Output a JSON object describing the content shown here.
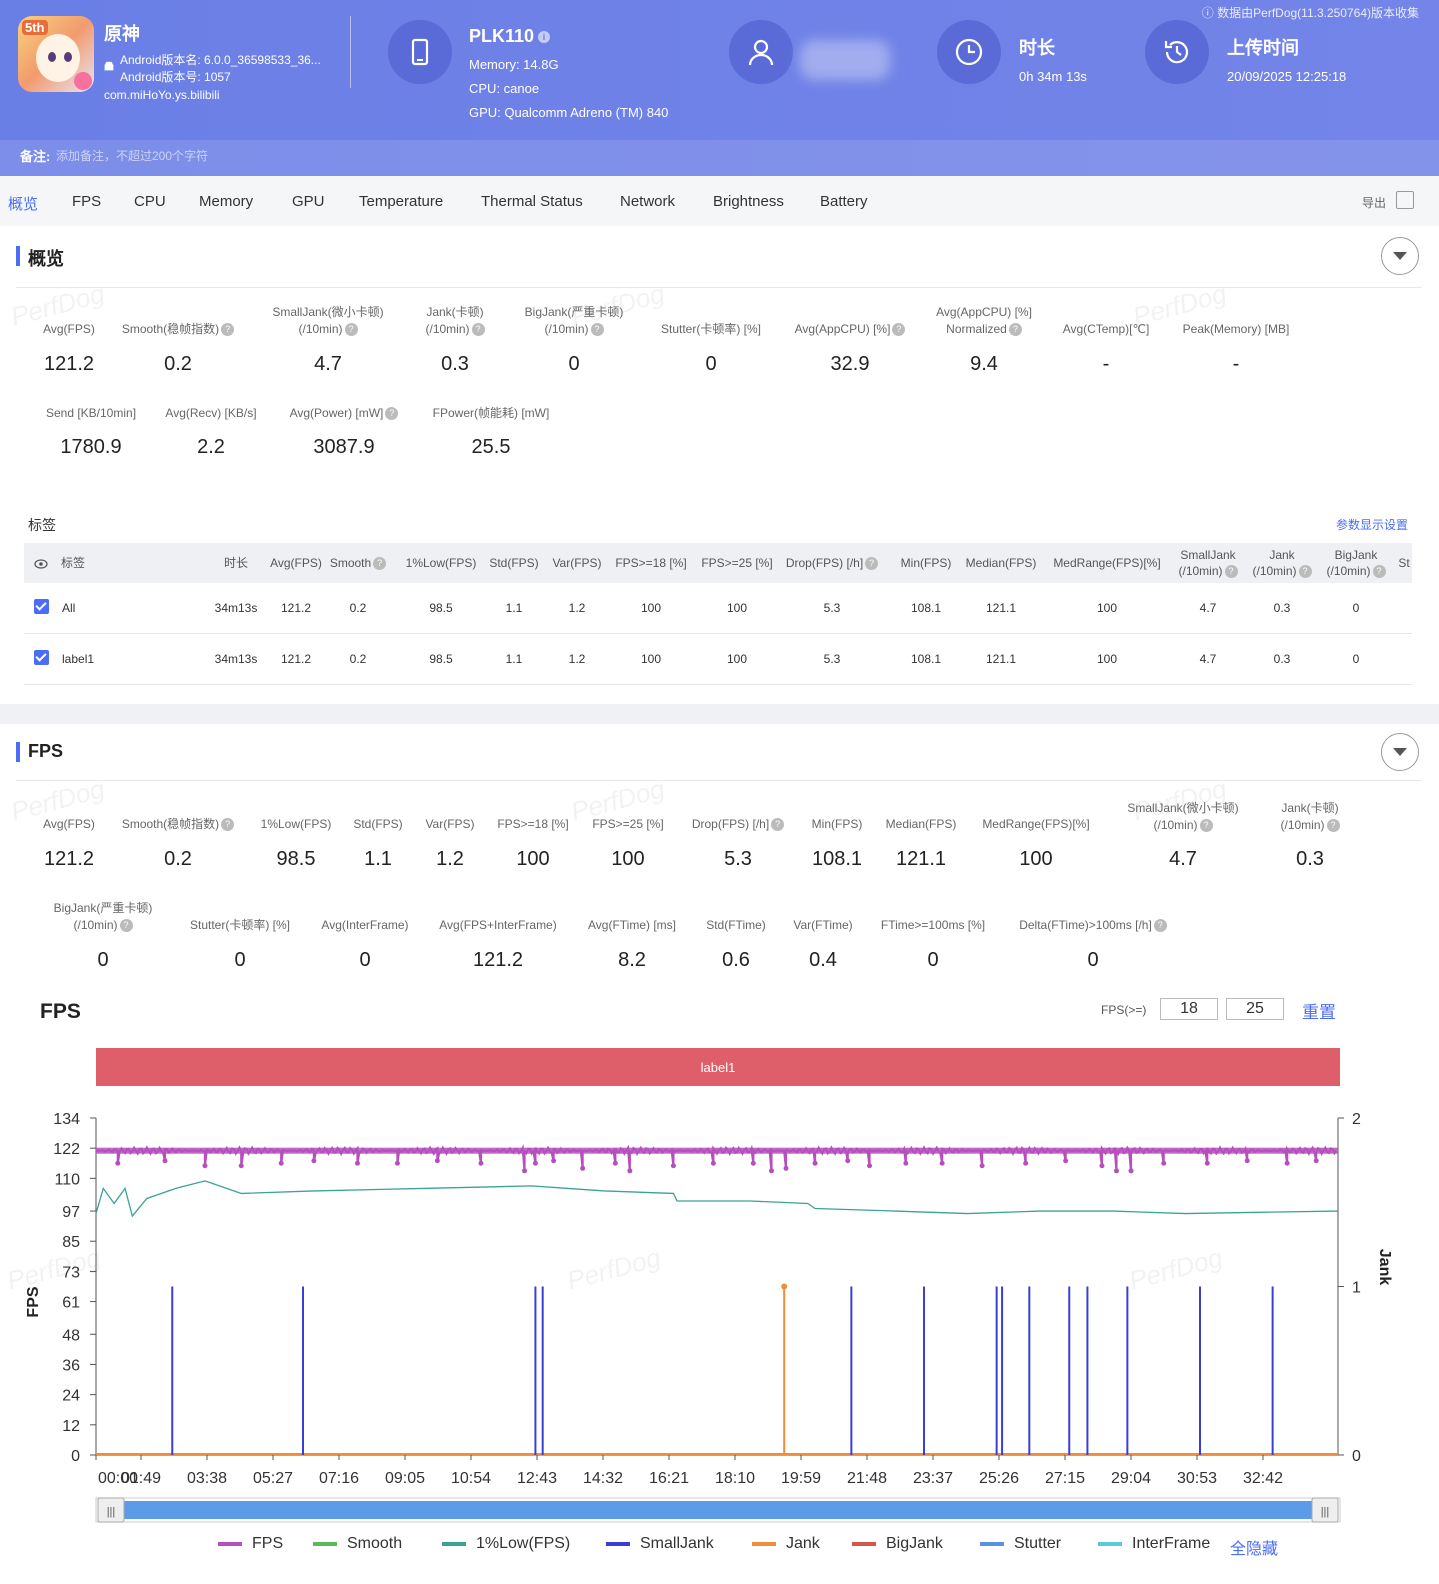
{
  "header": {
    "app_name": "原神",
    "android_version_name": "Android版本名: 6.0.0_36598533_36...",
    "android_version_code": "Android版本号: 1057",
    "package": "com.miHoYo.ys.bilibili",
    "device_name": "PLK110",
    "memory": "Memory: 14.8G",
    "cpu": "CPU: canoe",
    "gpu": "GPU: Qualcomm Adreno (TM) 840",
    "duration_title": "时长",
    "duration_value": "0h 34m 13s",
    "upload_title": "上传时间",
    "upload_value": "20/09/2025 12:25:18",
    "collect_note": "数据由PerfDog(11.3.250764)版本收集",
    "remark_label": "备注:",
    "remark_placeholder": "添加备注，不超过200个字符",
    "icon_badge": "5th"
  },
  "tabs": [
    "概览",
    "FPS",
    "CPU",
    "Memory",
    "GPU",
    "Temperature",
    "Thermal Status",
    "Network",
    "Brightness",
    "Battery"
  ],
  "export_label": "导出",
  "overview": {
    "title": "概览",
    "watermark": "PerfDog",
    "row1": [
      {
        "label": "Avg(FPS)",
        "value": "121.2"
      },
      {
        "label": "Smooth(稳帧指数)",
        "value": "0.2"
      },
      {
        "label": "SmallJank(微小卡顿)",
        "label2": "(/10min)",
        "value": "4.7"
      },
      {
        "label": "Jank(卡顿)",
        "label2": "(/10min)",
        "value": "0.3"
      },
      {
        "label": "BigJank(严重卡顿)",
        "label2": "(/10min)",
        "value": "0"
      },
      {
        "label": "Stutter(卡顿率) [%]",
        "value": "0"
      },
      {
        "label": "Avg(AppCPU) [%]",
        "value": "32.9"
      },
      {
        "label": "Avg(AppCPU) [%]",
        "label2": "Normalized",
        "value": "9.4"
      },
      {
        "label": "Avg(CTemp)[℃]",
        "value": "-"
      },
      {
        "label": "Peak(Memory) [MB]",
        "value": "-"
      }
    ],
    "row2": [
      {
        "label": "Send [KB/10min]",
        "value": "1780.9"
      },
      {
        "label": "Avg(Recv) [KB/s]",
        "value": "2.2"
      },
      {
        "label": "Avg(Power) [mW]",
        "value": "3087.9"
      },
      {
        "label": "FPower(帧能耗) [mW]",
        "value": "25.5"
      }
    ]
  },
  "tags": {
    "title": "标签",
    "settings_link": "参数显示设置",
    "headers": [
      "标签",
      "时长",
      "Avg(FPS)",
      "Smooth",
      "1%Low(FPS)",
      "Std(FPS)",
      "Var(FPS)",
      "FPS>=18 [%]",
      "FPS>=25 [%]",
      "Drop(FPS) [/h]",
      "Min(FPS)",
      "Median(FPS)",
      "MedRange(FPS)[%]",
      "SmallJank",
      "Jank",
      "BigJank",
      "St"
    ],
    "headers_sub": {
      "smalljank": "(/10min)",
      "jank": "(/10min)",
      "bigjank": "(/10min)"
    },
    "rows": [
      [
        "All",
        "34m13s",
        "121.2",
        "0.2",
        "98.5",
        "1.1",
        "1.2",
        "100",
        "100",
        "5.3",
        "108.1",
        "121.1",
        "100",
        "4.7",
        "0.3",
        "0"
      ],
      [
        "label1",
        "34m13s",
        "121.2",
        "0.2",
        "98.5",
        "1.1",
        "1.2",
        "100",
        "100",
        "5.3",
        "108.1",
        "121.1",
        "100",
        "4.7",
        "0.3",
        "0"
      ]
    ]
  },
  "fps_section": {
    "title": "FPS",
    "row1": [
      {
        "label": "Avg(FPS)",
        "value": "121.2"
      },
      {
        "label": "Smooth(稳帧指数)",
        "value": "0.2"
      },
      {
        "label": "1%Low(FPS)",
        "value": "98.5"
      },
      {
        "label": "Std(FPS)",
        "value": "1.1"
      },
      {
        "label": "Var(FPS)",
        "value": "1.2"
      },
      {
        "label": "FPS>=18 [%]",
        "value": "100"
      },
      {
        "label": "FPS>=25 [%]",
        "value": "100"
      },
      {
        "label": "Drop(FPS) [/h]",
        "value": "5.3"
      },
      {
        "label": "Min(FPS)",
        "value": "108.1"
      },
      {
        "label": "Median(FPS)",
        "value": "121.1"
      },
      {
        "label": "MedRange(FPS)[%]",
        "value": "100"
      },
      {
        "label": "SmallJank(微小卡顿)",
        "label2": "(/10min)",
        "value": "4.7"
      },
      {
        "label": "Jank(卡顿)",
        "label2": "(/10min)",
        "value": "0.3"
      }
    ],
    "row2": [
      {
        "label": "BigJank(严重卡顿)",
        "label2": "(/10min)",
        "value": "0"
      },
      {
        "label": "Stutter(卡顿率) [%]",
        "value": "0"
      },
      {
        "label": "Avg(InterFrame)",
        "value": "0"
      },
      {
        "label": "Avg(FPS+InterFrame)",
        "value": "121.2"
      },
      {
        "label": "Avg(FTime) [ms]",
        "value": "8.2"
      },
      {
        "label": "Std(FTime)",
        "value": "0.6"
      },
      {
        "label": "Var(FTime)",
        "value": "0.4"
      },
      {
        "label": "FTime>=100ms [%]",
        "value": "0"
      },
      {
        "label": "Delta(FTime)>100ms [/h]",
        "value": "0"
      }
    ],
    "chart_title": "FPS",
    "fps_ge_label": "FPS(>=)",
    "threshold_1": "18",
    "threshold_2": "25",
    "reset_label": "重置",
    "label_bar": "label1",
    "hide_all": "全隐藏"
  },
  "chart_data": {
    "type": "line",
    "title": "FPS",
    "ylabel": "FPS",
    "y2label": "Jank",
    "ylim": [
      0,
      134
    ],
    "y2lim": [
      0,
      2
    ],
    "yticks": [
      "134",
      "122",
      "110",
      "97",
      "85",
      "73",
      "61",
      "48",
      "36",
      "24",
      "12",
      "0"
    ],
    "y2ticks": [
      "2",
      "1",
      "0"
    ],
    "xticks": [
      "00:00",
      "01:49",
      "03:38",
      "05:27",
      "07:16",
      "09:05",
      "10:54",
      "12:43",
      "14:32",
      "16:21",
      "18:10",
      "19:59",
      "21:48",
      "23:37",
      "25:26",
      "27:15",
      "29:04",
      "30:53",
      "32:42"
    ],
    "series": [
      {
        "name": "FPS",
        "color": "#b64fbd",
        "baseline": 121,
        "dips": [
          [
            0.6,
            116
          ],
          [
            1.9,
            117
          ],
          [
            3.0,
            115
          ],
          [
            4.0,
            115
          ],
          [
            5.1,
            116
          ],
          [
            6.0,
            117
          ],
          [
            7.2,
            116
          ],
          [
            8.3,
            116
          ],
          [
            9.4,
            117
          ],
          [
            10.6,
            116
          ],
          [
            11.8,
            113
          ],
          [
            12.1,
            116
          ],
          [
            12.6,
            117
          ],
          [
            13.4,
            114
          ],
          [
            14.3,
            116
          ],
          [
            14.7,
            113
          ],
          [
            15.9,
            115
          ],
          [
            17.0,
            116
          ],
          [
            18.1,
            116
          ],
          [
            18.6,
            113
          ],
          [
            19.0,
            114
          ],
          [
            19.8,
            116
          ],
          [
            20.7,
            117
          ],
          [
            21.3,
            115
          ],
          [
            22.3,
            116
          ],
          [
            23.3,
            116
          ],
          [
            24.4,
            115
          ],
          [
            25.6,
            116
          ],
          [
            26.7,
            117
          ],
          [
            27.7,
            115
          ],
          [
            28.1,
            113
          ],
          [
            28.5,
            113
          ],
          [
            29.4,
            116
          ],
          [
            30.6,
            116
          ],
          [
            31.7,
            117
          ],
          [
            32.8,
            116
          ],
          [
            33.6,
            117
          ]
        ]
      },
      {
        "name": "Smooth",
        "color": "#5cb85c"
      },
      {
        "name": "1%Low(FPS)",
        "color": "#3aa394",
        "points": [
          [
            0,
            96
          ],
          [
            0.2,
            106
          ],
          [
            0.5,
            100
          ],
          [
            0.8,
            106
          ],
          [
            1.0,
            95
          ],
          [
            1.4,
            102
          ],
          [
            2.2,
            106
          ],
          [
            3.0,
            109
          ],
          [
            3.4,
            107
          ],
          [
            4.0,
            104
          ],
          [
            6.0,
            105
          ],
          [
            9.0,
            106
          ],
          [
            12.0,
            107
          ],
          [
            13.0,
            106
          ],
          [
            14.0,
            105
          ],
          [
            15.9,
            104
          ],
          [
            16.0,
            101
          ],
          [
            18.0,
            101
          ],
          [
            19.6,
            100
          ],
          [
            19.8,
            98
          ],
          [
            22.0,
            97
          ],
          [
            24.0,
            96
          ],
          [
            26.0,
            97
          ],
          [
            28.0,
            97
          ],
          [
            30.0,
            96
          ],
          [
            32.0,
            96.5
          ],
          [
            34.2,
            97
          ]
        ]
      },
      {
        "name": "SmallJank",
        "color": "#3a3fd4",
        "spikes": [
          2.1,
          5.7,
          12.1,
          12.3,
          20.8,
          22.8,
          24.8,
          24.95,
          25.7,
          26.8,
          27.3,
          28.4,
          30.4,
          32.4
        ]
      },
      {
        "name": "Jank",
        "color": "#f08c3a",
        "spikes": [
          18.95
        ]
      },
      {
        "name": "BigJank",
        "color": "#d9534f"
      },
      {
        "name": "Stutter",
        "color": "#5b8fdf"
      },
      {
        "name": "InterFrame",
        "color": "#5bc8d9"
      }
    ],
    "x_minutes_total": 34.2
  }
}
